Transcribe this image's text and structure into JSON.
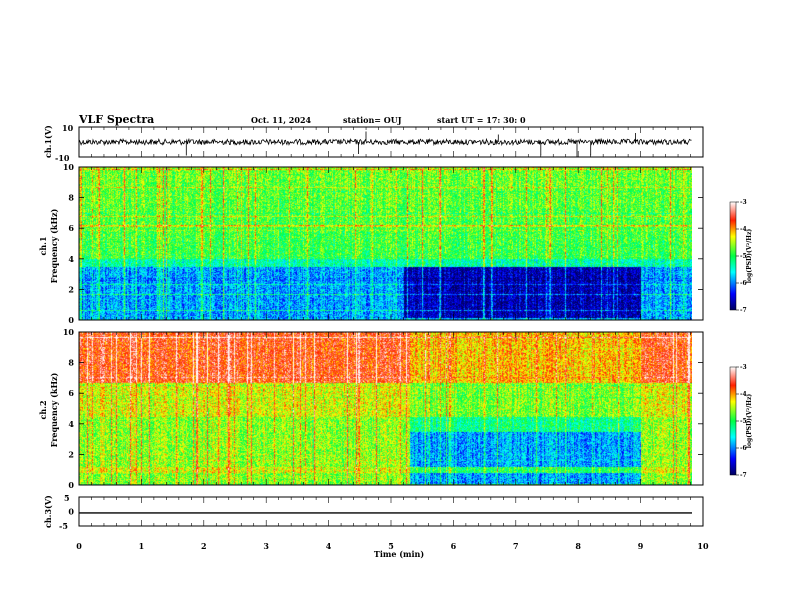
{
  "header": {
    "title": "VLF Spectra",
    "date": "Oct. 11, 2024",
    "station": "station= OUJ",
    "start": "start  UT =   17: 30: 0"
  },
  "chart_data": [
    {
      "type": "line",
      "panel": "ch1-waveform",
      "ylabel": "ch.1(V)",
      "ylim": [
        -10,
        10
      ],
      "yticks": [
        "10",
        "-10"
      ],
      "xlim": [
        0,
        10
      ],
      "baseline": 0,
      "spikes": [
        {
          "x": 1.72,
          "y": -9
        },
        {
          "x": 4.48,
          "y": -8
        },
        {
          "x": 4.6,
          "y": 7
        },
        {
          "x": 6.72,
          "y": 5
        },
        {
          "x": 7.4,
          "y": -9
        },
        {
          "x": 7.98,
          "y": -10
        },
        {
          "x": 8.2,
          "y": -9
        },
        {
          "x": 8.92,
          "y": 6
        }
      ]
    },
    {
      "type": "heatmap",
      "panel": "ch1-spectrogram",
      "ylabel": "ch.1",
      "ylabel2": "Frequency (kHz)",
      "ylim": [
        0,
        10
      ],
      "yticks": [
        "10",
        "8",
        "6",
        "4",
        "2",
        "0"
      ],
      "xlim": [
        0,
        10
      ],
      "colorbar": {
        "label": "log(PSD)(V²/Hz)",
        "ticks": [
          "-3",
          "-4",
          "-5",
          "-6",
          "-7"
        ],
        "range": [
          -7,
          -3
        ]
      },
      "note": "quiet band 0-3.5 kHz darkens between 5.2 and 9.0 min",
      "event": {
        "t_start": 5.2,
        "t_end": 9.0
      }
    },
    {
      "type": "heatmap",
      "panel": "ch2-spectrogram",
      "ylabel": "ch.2",
      "ylabel2": "Frequency (kHz)",
      "ylim": [
        0,
        10
      ],
      "yticks": [
        "10",
        "8",
        "6",
        "4",
        "2",
        "0"
      ],
      "xlim": [
        0,
        10
      ],
      "colorbar": {
        "label": "log(PSD)(V²/Hz)",
        "ticks": [
          "-3",
          "-4",
          "-5",
          "-6",
          "-7"
        ],
        "range": [
          -7,
          -3
        ]
      },
      "event": {
        "t_start": 5.3,
        "t_end": 9.0
      }
    },
    {
      "type": "line",
      "panel": "ch3-waveform",
      "ylabel": "ch.3(V)",
      "ylim": [
        -5,
        5
      ],
      "yticks": [
        "5",
        "0",
        "-5"
      ],
      "xlim": [
        0,
        10
      ],
      "value": -0.5,
      "xlabel": "Time (min)",
      "xticks": [
        "0",
        "1",
        "2",
        "3",
        "4",
        "5",
        "6",
        "7",
        "8",
        "9",
        "10"
      ]
    }
  ],
  "colors": {
    "scale": [
      "#00007f",
      "#0000ff",
      "#00ffff",
      "#00ff66",
      "#ffff00",
      "#ff7f00",
      "#ff0000",
      "#ffffff"
    ]
  }
}
